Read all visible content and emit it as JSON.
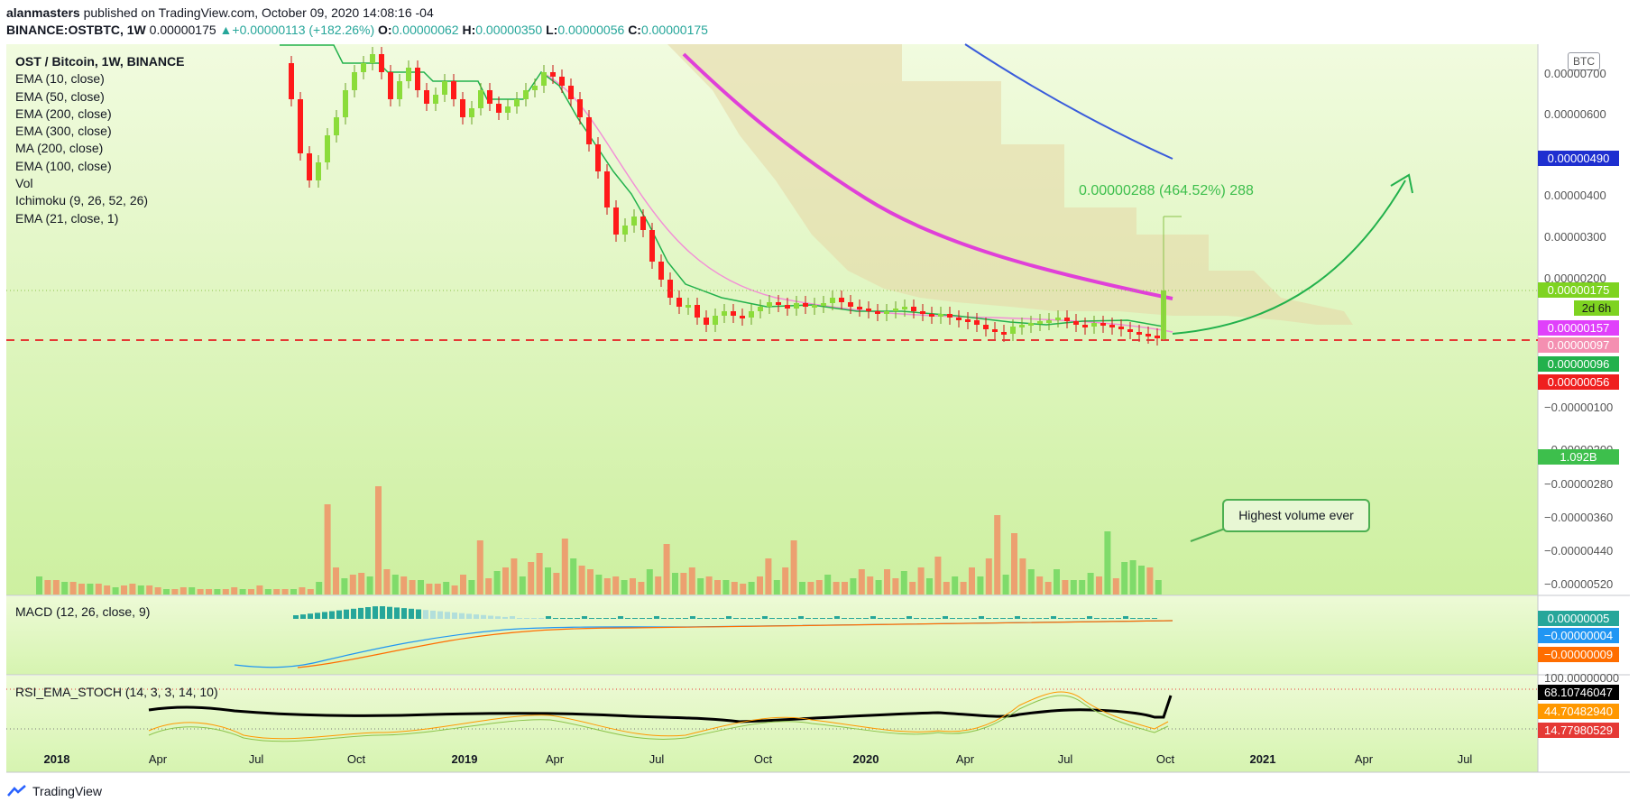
{
  "header": {
    "author": "alanmasters",
    "published_text": "published on TradingView.com, October 09, 2020 14:08:16 -04",
    "symbol": "BINANCE:OSTBTC, 1W",
    "last": "0.00000175",
    "change": "▲+0.00000113 (+182.26%)",
    "o_label": "O:",
    "o": "0.00000062",
    "h_label": "H:",
    "h": "0.00000350",
    "l_label": "L:",
    "l": "0.00000056",
    "c_label": "C:",
    "c": "0.00000175"
  },
  "legend": {
    "symbol": "OST / Bitcoin, 1W, BINANCE",
    "items": [
      "EMA (10, close)",
      "EMA (50, close)",
      "EMA (200, close)",
      "EMA (300, close)",
      "MA (200, close)",
      "EMA (100, close)",
      "Vol",
      "Ichimoku (9, 26, 52, 26)",
      "EMA (21, close, 1)"
    ]
  },
  "macd_label": "MACD (12, 26, close, 9)",
  "rsi_label": "RSI_EMA_STOCH (14, 3, 3, 14, 10)",
  "currency_badge": "BTC",
  "annotation": {
    "measure": "0.00000288 (464.52%) 288",
    "callout": "Highest volume ever"
  },
  "price_tags": [
    {
      "text": "0.00000490",
      "color": "#1e2fd0"
    },
    {
      "text": "0.00000175",
      "color": "#7ed321"
    },
    {
      "text": "2d 6h",
      "color": "#7ed321"
    },
    {
      "text": "0.00000157",
      "color": "#e040fb"
    },
    {
      "text": "0.00000097",
      "color": "#f48fb1"
    },
    {
      "text": "0.00000096",
      "color": "#22b14c"
    },
    {
      "text": "0.00000056",
      "color": "#ef1f1f"
    },
    {
      "text": "1.092B",
      "color": "#3dbf4c"
    },
    {
      "text": "0.00000005",
      "color": "#26a69a"
    },
    {
      "text": "−0.00000004",
      "color": "#2196f3"
    },
    {
      "text": "−0.00000009",
      "color": "#ff6d00"
    },
    {
      "text": "68.10746047",
      "color": "#000000"
    },
    {
      "text": "44.70482940",
      "color": "#ff9800"
    },
    {
      "text": "14.77980529",
      "color": "#e53935"
    }
  ],
  "price_axis_labels": [
    "0.00000700",
    "0.00000600",
    "0.00000400",
    "0.00000300",
    "0.00000200",
    "−0.00000100",
    "−0.00000200",
    "−0.00000280",
    "−0.00000360",
    "−0.00000440",
    "−0.00000520",
    "100.00000000"
  ],
  "time_axis_labels": [
    "2018",
    "Apr",
    "Jul",
    "Oct",
    "2019",
    "Apr",
    "Jul",
    "Oct",
    "2020",
    "Apr",
    "Jul",
    "Oct",
    "2021",
    "Apr",
    "Jul"
  ],
  "footer": {
    "brand": "TradingView"
  },
  "chart_data": {
    "type": "candlestick",
    "title": "OST / Bitcoin, 1W, BINANCE",
    "interval": "1W",
    "y_unit": "BTC",
    "price_range": [
      5.6e-07,
      7.6e-06
    ],
    "candles_summary": [
      {
        "period": "2018 Jul",
        "open": 6.3e-06,
        "close": 4.9e-06
      },
      {
        "period": "2018 Oct",
        "open": 5.8e-06,
        "close": 6.8e-06
      },
      {
        "period": "2019 Jan",
        "open": 6.6e-06,
        "close": 6.4e-06
      },
      {
        "period": "2019 Apr",
        "open": 6.8e-06,
        "close": 5.5e-06
      },
      {
        "period": "2019 Jul",
        "open": 2.1e-06,
        "close": 1.3e-06
      },
      {
        "period": "2019 Oct",
        "open": 1.4e-06,
        "close": 1.5e-06
      },
      {
        "period": "2020 Jan",
        "open": 1.5e-06,
        "close": 1.3e-06
      },
      {
        "period": "2020 Apr",
        "open": 1.1e-06,
        "close": 9.5e-07
      },
      {
        "period": "2020 Jul",
        "open": 1.2e-06,
        "close": 1.1e-06
      },
      {
        "period": "2020 Oct",
        "open": 6.2e-07,
        "close": 1.75e-06
      }
    ],
    "last_candle": {
      "open": 6.2e-07,
      "high": 3.5e-06,
      "low": 5.6e-07,
      "close": 1.75e-06
    },
    "support_line": 9.7e-07,
    "volume_last": "1.092B",
    "macd": {
      "macd": 5e-08,
      "signal": -4e-08,
      "hist": -9e-08
    },
    "rsi_stoch": [
      68.10746047,
      44.7048294,
      14.77980529
    ]
  },
  "colors": {
    "up": "#8bdc3a",
    "down": "#ff1a1a",
    "bg_main": "#e9f9cf",
    "ema_pink": "#f06fd0",
    "ema_magenta": "#e040d8",
    "ema_blue": "#3a5cdb",
    "ema_green": "#22b14c",
    "support": "#e53935"
  }
}
